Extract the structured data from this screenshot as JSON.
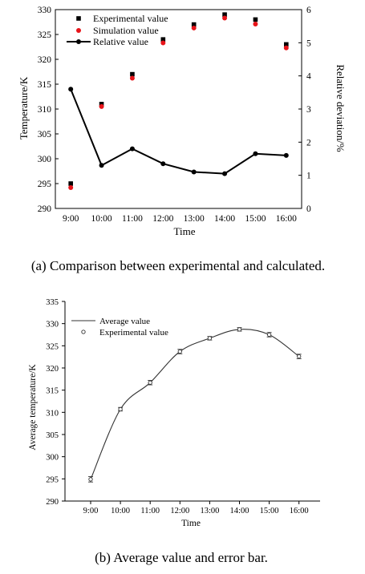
{
  "captions": {
    "a": "(a) Comparison between experimental and calculated.",
    "b": "(b) Average value and error bar."
  },
  "colors": {
    "experimental": "#000000",
    "simulation": "#e8141a",
    "relative": "#000000",
    "average": "#333333"
  },
  "chart_data": [
    {
      "type": "scatter",
      "title": "",
      "xlabel": "Time",
      "ylabel": "Temperature/K",
      "y2label": "Relative deviation/%",
      "categories": [
        "9:00",
        "10:00",
        "11:00",
        "12:00",
        "13:00",
        "14:00",
        "15:00",
        "16:00"
      ],
      "ylim": [
        290,
        330
      ],
      "yticks": [
        "290",
        "295",
        "300",
        "305",
        "310",
        "315",
        "320",
        "325",
        "330"
      ],
      "y2lim": [
        0,
        6
      ],
      "y2ticks": [
        "0",
        "1",
        "2",
        "3",
        "4",
        "5",
        "6"
      ],
      "legend_position": "top",
      "series": [
        {
          "name": "Experimental value",
          "axis": "left",
          "marker": "square",
          "values": [
            295.0,
            311.0,
            317.0,
            324.0,
            327.0,
            329.0,
            328.0,
            323.0
          ]
        },
        {
          "name": "Simulation value",
          "axis": "left",
          "marker": "circle",
          "values": [
            294.2,
            310.5,
            316.2,
            323.3,
            326.3,
            328.3,
            327.1,
            322.3
          ]
        },
        {
          "name": "Relative value",
          "axis": "right",
          "marker": "line-circle",
          "values": [
            3.6,
            1.3,
            1.8,
            1.35,
            1.1,
            1.05,
            1.65,
            1.6
          ]
        }
      ]
    },
    {
      "type": "line",
      "title": "",
      "xlabel": "Time",
      "ylabel": "Average temperature/K",
      "categories": [
        "9:00",
        "10:00",
        "11:00",
        "12:00",
        "13:00",
        "14:00",
        "15:00",
        "16:00"
      ],
      "ylim": [
        290,
        335
      ],
      "yticks": [
        "290",
        "295",
        "300",
        "305",
        "310",
        "315",
        "320",
        "325",
        "330",
        "335"
      ],
      "legend_position": "top-left",
      "series": [
        {
          "name": "Average value",
          "style": "smooth-line",
          "values": [
            294.9,
            310.7,
            316.7,
            323.7,
            326.7,
            328.7,
            327.5,
            322.6
          ]
        },
        {
          "name": "Experimental value",
          "style": "open-circle-errorbar",
          "values": [
            294.9,
            310.7,
            316.7,
            323.7,
            326.7,
            328.7,
            327.5,
            322.6
          ],
          "error": [
            0.6,
            0.4,
            0.5,
            0.5,
            0.4,
            0.4,
            0.5,
            0.5
          ]
        }
      ]
    }
  ]
}
